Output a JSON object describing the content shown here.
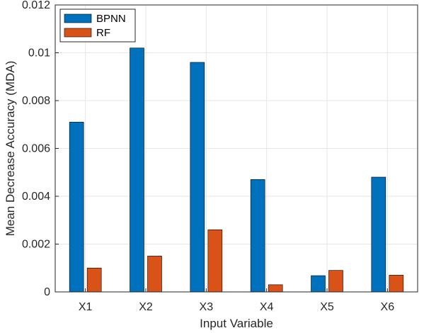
{
  "chart_data": {
    "type": "bar",
    "categories": [
      "X1",
      "X2",
      "X3",
      "X4",
      "X5",
      "X6"
    ],
    "series": [
      {
        "name": "BPNN",
        "color": "#0072BD",
        "values": [
          0.0071,
          0.0102,
          0.0096,
          0.0047,
          0.00068,
          0.0048
        ]
      },
      {
        "name": "RF",
        "color": "#D95319",
        "values": [
          0.001,
          0.0015,
          0.0026,
          0.0003,
          0.0009,
          0.0007
        ]
      }
    ],
    "xlabel": "Input Variable",
    "ylabel": "Mean Decrease Accuracy (MDA)",
    "ylim": [
      0,
      0.012
    ],
    "yticks": [
      0,
      0.002,
      0.004,
      0.006,
      0.008,
      0.01,
      0.012
    ],
    "ytick_labels": [
      "0",
      "0.002",
      "0.004",
      "0.006",
      "0.008",
      "0.01",
      "0.012"
    ],
    "grid": true,
    "legend_position": "top-left"
  }
}
